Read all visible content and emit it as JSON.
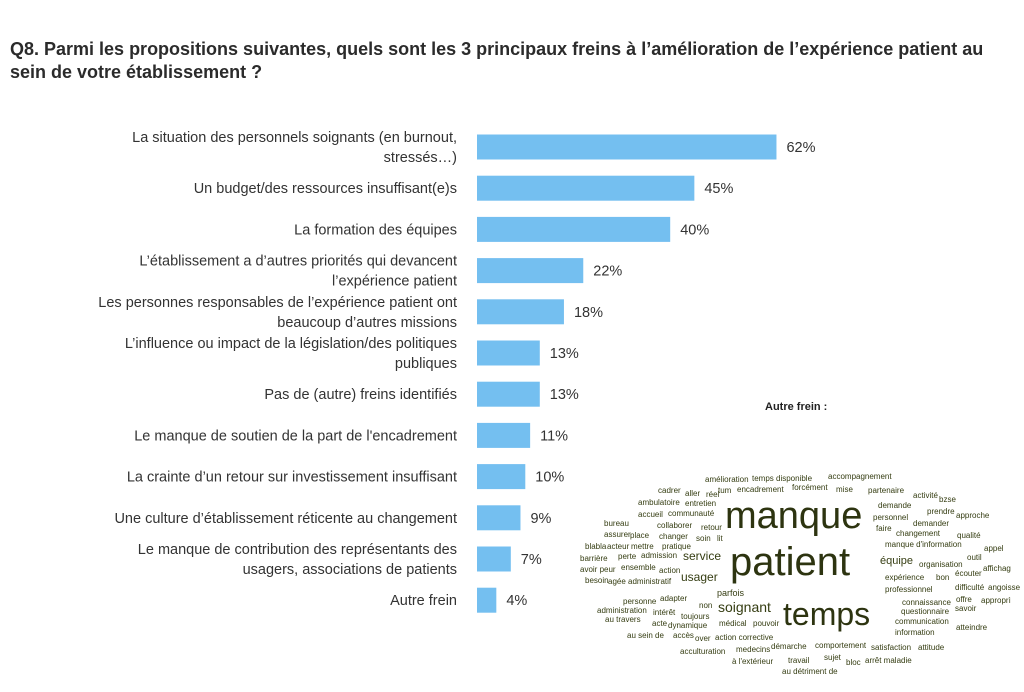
{
  "title": "Q8. Parmi les propositions suivantes, quels sont les 3 principaux freins à l’amélioration de l’expérience patient au sein de votre établissement ?",
  "chart_data": {
    "type": "bar",
    "orientation": "horizontal",
    "categories": [
      [
        "La situation des personnels soignants (en burnout,",
        "stressés…)"
      ],
      [
        "Un budget/des ressources insuffisant(e)s"
      ],
      [
        "La formation des équipes"
      ],
      [
        "L’établissement a d’autres priorités qui devancent",
        "l’expérience patient"
      ],
      [
        "Les personnes responsables de l’expérience patient ont",
        "beaucoup d’autres missions"
      ],
      [
        "L’influence ou impact de la législation/des politiques",
        "publiques"
      ],
      [
        "Pas de (autre) freins identifiés"
      ],
      [
        "Le manque de soutien de la part de l'encadrement"
      ],
      [
        "La crainte d’un retour sur investissement insuffisant"
      ],
      [
        "Une culture d’établissement réticente au changement"
      ],
      [
        "Le manque de contribution des représentants des",
        "usagers, associations de patients"
      ],
      [
        "Autre frein"
      ]
    ],
    "values": [
      62,
      45,
      40,
      22,
      18,
      13,
      13,
      11,
      10,
      9,
      7,
      4
    ],
    "value_labels": [
      "62%",
      "45%",
      "40%",
      "22%",
      "18%",
      "13%",
      "13%",
      "11%",
      "10%",
      "9%",
      "7%",
      "4%"
    ],
    "bar_color": "#74bff0",
    "grid": false
  },
  "wordcloud": {
    "title": "Autre frein :",
    "words": [
      "amélioration",
      "temps disponible",
      "accompagnement",
      "cadrer",
      "aller",
      "réel",
      "tum",
      "encadrement",
      "forcément",
      "mise",
      "partenaire",
      "activité",
      "bzse",
      "ambulatoire",
      "entretien",
      "demande",
      "prendre",
      "approche",
      "accueil",
      "communauté",
      "personnel",
      "bureau",
      "collaborer",
      "retour",
      "faire",
      "demander",
      "changement",
      "qualité",
      "manque",
      "assurer",
      "place",
      "changer",
      "soin",
      "lit",
      "manque d'information",
      "appel",
      "blabla",
      "acteur",
      "mettre",
      "pratique",
      "outil",
      "barrière",
      "perte",
      "admission",
      "service",
      "équipe",
      "organisation",
      "affichag",
      "avoir peur",
      "ensemble",
      "action",
      "écouter",
      "patient",
      "usager",
      "expérience",
      "bon",
      "besoin",
      "agée",
      "administratif",
      "professionnel",
      "difficulté",
      "angoisse",
      "personne",
      "adapter",
      "parfois",
      "connaissance",
      "offre",
      "approprì",
      "administration",
      "intérêt",
      "non",
      "soignant",
      "questionnaire",
      "savoir",
      "au travers",
      "toujours",
      "temps",
      "acte",
      "dynamique",
      "médical",
      "pouvoir",
      "communication",
      "atteindre",
      "au sein de",
      "accès",
      "over",
      "action corrective",
      "information",
      "acculturation",
      "medecins",
      "démarche",
      "comportement",
      "satisfaction",
      "attitude",
      "à l'extérieur",
      "travail",
      "sujet",
      "bloc",
      "arrêt maladie",
      "au détriment de"
    ]
  }
}
